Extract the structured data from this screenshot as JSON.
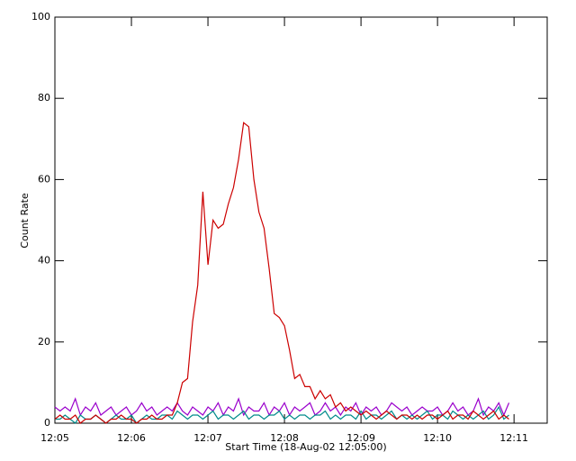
{
  "chart_data": {
    "type": "line",
    "ylabel": "Count Rate",
    "xlabel": "Start Time (18-Aug-02 12:05:00)",
    "xlim": [
      0,
      386
    ],
    "ylim": [
      0,
      100
    ],
    "yticks": [
      0,
      20,
      40,
      60,
      80,
      100
    ],
    "xticks": [
      {
        "value": 0,
        "label": "12:05"
      },
      {
        "value": 60,
        "label": "12:06"
      },
      {
        "value": 120,
        "label": "12:07"
      },
      {
        "value": 180,
        "label": "12:08"
      },
      {
        "value": 240,
        "label": "12:09"
      },
      {
        "value": 300,
        "label": "12:10"
      },
      {
        "value": 360,
        "label": "12:11"
      }
    ],
    "x": [
      0,
      4,
      8,
      12,
      16,
      20,
      24,
      28,
      32,
      36,
      40,
      44,
      48,
      52,
      56,
      60,
      64,
      68,
      72,
      76,
      80,
      84,
      88,
      92,
      96,
      100,
      104,
      108,
      112,
      116,
      120,
      124,
      128,
      132,
      136,
      140,
      144,
      148,
      152,
      156,
      160,
      164,
      168,
      172,
      176,
      180,
      184,
      188,
      192,
      196,
      200,
      204,
      208,
      212,
      216,
      220,
      224,
      228,
      232,
      236,
      240,
      244,
      248,
      252,
      256,
      260,
      264,
      268,
      272,
      276,
      280,
      284,
      288,
      292,
      296,
      300,
      304,
      308,
      312,
      316,
      320,
      324,
      328,
      332,
      336,
      340,
      344,
      348,
      352,
      356
    ],
    "series": [
      {
        "color": "#9a00cc",
        "values": [
          4,
          3,
          4,
          3,
          6,
          2,
          4,
          3,
          5,
          2,
          3,
          4,
          2,
          3,
          4,
          2,
          3,
          5,
          3,
          4,
          2,
          3,
          4,
          3,
          5,
          3,
          2,
          4,
          3,
          2,
          4,
          3,
          5,
          2,
          4,
          3,
          6,
          2,
          4,
          3,
          3,
          5,
          2,
          4,
          3,
          5,
          2,
          4,
          3,
          4,
          5,
          2,
          3,
          5,
          3,
          4,
          2,
          4,
          3,
          5,
          2,
          4,
          3,
          4,
          2,
          3,
          5,
          4,
          3,
          4,
          2,
          3,
          4,
          3,
          3,
          4,
          2,
          3,
          5,
          3,
          4,
          2,
          3,
          6,
          2,
          4,
          3,
          5,
          2,
          5
        ]
      },
      {
        "color": "#008b8b",
        "values": [
          1,
          1,
          2,
          1,
          0,
          2,
          1,
          1,
          2,
          1,
          0,
          1,
          2,
          1,
          1,
          2,
          0,
          1,
          2,
          1,
          1,
          2,
          2,
          1,
          3,
          2,
          1,
          2,
          2,
          1,
          2,
          3,
          1,
          2,
          2,
          1,
          2,
          3,
          1,
          2,
          2,
          1,
          2,
          2,
          3,
          1,
          2,
          1,
          2,
          2,
          1,
          2,
          2,
          3,
          1,
          2,
          1,
          2,
          2,
          1,
          3,
          1,
          2,
          2,
          1,
          2,
          3,
          1,
          2,
          1,
          2,
          1,
          2,
          3,
          1,
          2,
          2,
          1,
          3,
          2,
          1,
          2,
          1,
          2,
          3,
          1,
          2,
          4,
          1,
          2
        ]
      },
      {
        "color": "#cc0000",
        "values": [
          1,
          2,
          1,
          1,
          2,
          0,
          1,
          1,
          2,
          1,
          0,
          1,
          1,
          2,
          1,
          1,
          0,
          1,
          1,
          2,
          1,
          1,
          2,
          2,
          5,
          10,
          11,
          25,
          34,
          57,
          39,
          50,
          48,
          49,
          54,
          58,
          65,
          74,
          73,
          60,
          52,
          48,
          38,
          27,
          26,
          24,
          18,
          11,
          12,
          9,
          9,
          6,
          8,
          6,
          7,
          4,
          5,
          3,
          4,
          3,
          2,
          3,
          2,
          1,
          2,
          3,
          2,
          1,
          2,
          2,
          1,
          2,
          1,
          2,
          2,
          1,
          2,
          3,
          1,
          2,
          2,
          1,
          3,
          2,
          1,
          2,
          3,
          1,
          2,
          1
        ]
      }
    ]
  }
}
